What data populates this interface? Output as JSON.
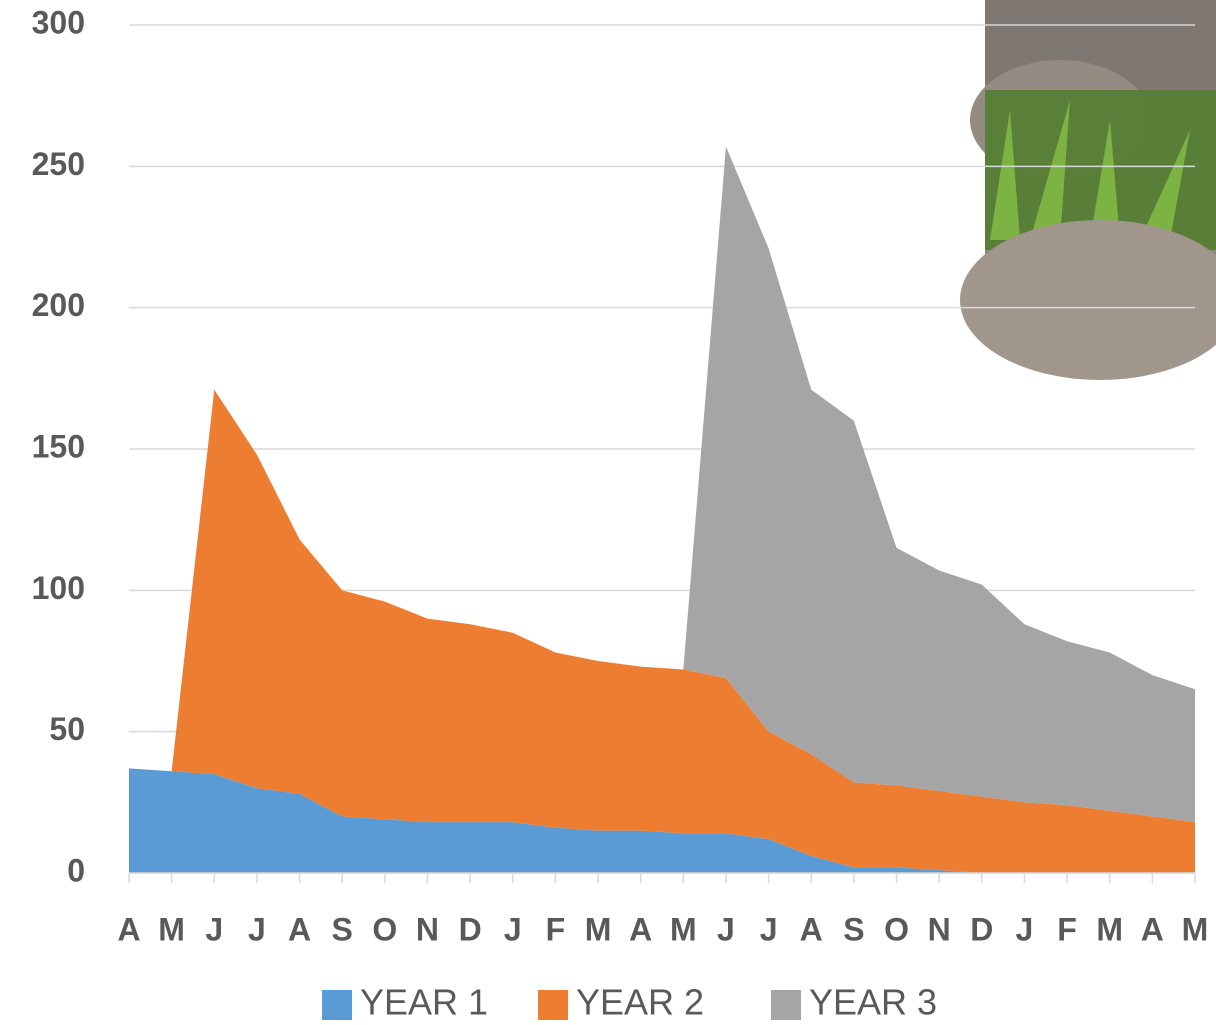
{
  "chart_data": {
    "type": "stacked-area",
    "categories": [
      "A",
      "M",
      "J",
      "J",
      "A",
      "S",
      "O",
      "N",
      "D",
      "J",
      "F",
      "M",
      "A",
      "M",
      "J",
      "J",
      "A",
      "S",
      "O",
      "N",
      "D",
      "J",
      "F",
      "M",
      "A",
      "M"
    ],
    "series": [
      {
        "name": "YEAR 1",
        "color": "#5b9bd5",
        "values": [
          37,
          36,
          35,
          30,
          28,
          20,
          19,
          18,
          18,
          18,
          16,
          15,
          15,
          14,
          14,
          12,
          6,
          2,
          2,
          1,
          0,
          0,
          0,
          0,
          0,
          0
        ]
      },
      {
        "name": "YEAR 2",
        "color": "#ed7d31",
        "values": [
          null,
          0,
          136,
          118,
          90,
          80,
          77,
          72,
          70,
          67,
          62,
          60,
          58,
          58,
          55,
          38,
          36,
          30,
          29,
          28,
          27,
          25,
          24,
          22,
          20,
          18
        ]
      },
      {
        "name": "YEAR 3",
        "color": "#a5a5a5",
        "values": [
          null,
          null,
          null,
          null,
          null,
          null,
          null,
          null,
          null,
          null,
          null,
          null,
          null,
          0,
          188,
          171,
          129,
          128,
          84,
          78,
          75,
          63,
          58,
          56,
          50,
          47
        ]
      }
    ],
    "ylim": [
      0,
      300
    ],
    "yticks": [
      0,
      50,
      100,
      150,
      200,
      250,
      300
    ],
    "grid": true,
    "legend": "bottom"
  }
}
